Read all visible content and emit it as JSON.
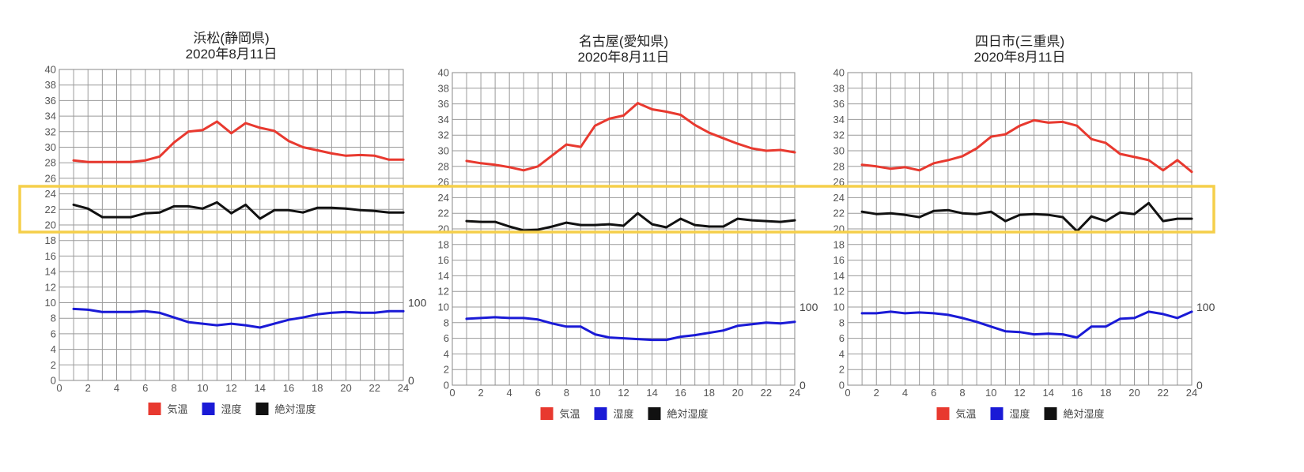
{
  "chart_data": [
    {
      "type": "line",
      "title": "浜松(静岡県)",
      "subtitle": "2020年8月11日",
      "x": [
        1,
        2,
        3,
        4,
        5,
        6,
        7,
        8,
        9,
        10,
        11,
        12,
        13,
        14,
        15,
        16,
        17,
        18,
        19,
        20,
        21,
        22,
        23,
        24
      ],
      "xticks": [
        0,
        2,
        4,
        6,
        8,
        10,
        12,
        14,
        16,
        18,
        20,
        22,
        24
      ],
      "xlim": [
        0,
        24
      ],
      "ylim": [
        0,
        40
      ],
      "yticks": [
        0,
        2,
        4,
        6,
        8,
        10,
        12,
        14,
        16,
        18,
        20,
        22,
        24,
        26,
        28,
        30,
        32,
        34,
        36,
        38,
        40
      ],
      "y2_labels": [
        {
          "label": "100",
          "y": 10
        },
        {
          "label": "0",
          "y": 0
        }
      ],
      "grid": true,
      "legend_position": "bottom",
      "series": [
        {
          "name": "気温",
          "color": "#e8392f",
          "values": [
            28.3,
            28.1,
            28.1,
            28.1,
            28.1,
            28.3,
            28.8,
            30.6,
            32.0,
            32.2,
            33.3,
            31.8,
            33.1,
            32.5,
            32.1,
            30.8,
            30.0,
            29.6,
            29.2,
            28.9,
            29.0,
            28.9,
            28.4,
            28.4
          ]
        },
        {
          "name": "湿度",
          "color": "#1a1ad6",
          "values": [
            9.2,
            9.1,
            8.8,
            8.8,
            8.8,
            8.9,
            8.7,
            8.1,
            7.5,
            7.3,
            7.1,
            7.3,
            7.1,
            6.8,
            7.3,
            7.8,
            8.1,
            8.5,
            8.7,
            8.8,
            8.7,
            8.7,
            8.9,
            8.9
          ]
        },
        {
          "name": "絶対湿度",
          "color": "#111111",
          "values": [
            22.6,
            22.1,
            21.0,
            21.0,
            21.0,
            21.5,
            21.6,
            22.4,
            22.4,
            22.1,
            22.9,
            21.5,
            22.6,
            20.8,
            21.9,
            21.9,
            21.6,
            22.2,
            22.2,
            22.1,
            21.9,
            21.8,
            21.6,
            21.6
          ]
        }
      ]
    },
    {
      "type": "line",
      "title": "名古屋(愛知県)",
      "subtitle": "2020年8月11日",
      "x": [
        1,
        2,
        3,
        4,
        5,
        6,
        7,
        8,
        9,
        10,
        11,
        12,
        13,
        14,
        15,
        16,
        17,
        18,
        19,
        20,
        21,
        22,
        23,
        24
      ],
      "xticks": [
        0,
        2,
        4,
        6,
        8,
        10,
        12,
        14,
        16,
        18,
        20,
        22,
        24
      ],
      "xlim": [
        0,
        24
      ],
      "ylim": [
        0,
        40
      ],
      "yticks": [
        0,
        2,
        4,
        6,
        8,
        10,
        12,
        14,
        16,
        18,
        20,
        22,
        24,
        26,
        28,
        30,
        32,
        34,
        36,
        38,
        40
      ],
      "y2_labels": [
        {
          "label": "100",
          "y": 10
        },
        {
          "label": "0",
          "y": 0
        }
      ],
      "grid": true,
      "legend_position": "bottom",
      "series": [
        {
          "name": "気温",
          "color": "#e8392f",
          "values": [
            28.7,
            28.4,
            28.2,
            27.9,
            27.5,
            28.0,
            29.4,
            30.8,
            30.5,
            33.2,
            34.1,
            34.5,
            36.1,
            35.3,
            35.0,
            34.6,
            33.3,
            32.3,
            31.6,
            30.9,
            30.3,
            30.0,
            30.1,
            29.8
          ]
        },
        {
          "name": "湿度",
          "color": "#1a1ad6",
          "values": [
            8.5,
            8.6,
            8.7,
            8.6,
            8.6,
            8.4,
            7.9,
            7.5,
            7.5,
            6.5,
            6.1,
            6.0,
            5.9,
            5.8,
            5.8,
            6.2,
            6.4,
            6.7,
            7.0,
            7.6,
            7.8,
            8.0,
            7.9,
            8.1
          ]
        },
        {
          "name": "絶対湿度",
          "color": "#111111",
          "values": [
            21.0,
            20.9,
            20.9,
            20.3,
            19.8,
            19.9,
            20.3,
            20.8,
            20.5,
            20.5,
            20.6,
            20.4,
            22.0,
            20.6,
            20.2,
            21.3,
            20.5,
            20.3,
            20.3,
            21.3,
            21.1,
            21.0,
            20.9,
            21.1
          ]
        }
      ]
    },
    {
      "type": "line",
      "title": "四日市(三重県)",
      "subtitle": "2020年8月11日",
      "x": [
        1,
        2,
        3,
        4,
        5,
        6,
        7,
        8,
        9,
        10,
        11,
        12,
        13,
        14,
        15,
        16,
        17,
        18,
        19,
        20,
        21,
        22,
        23,
        24
      ],
      "xticks": [
        0,
        2,
        4,
        6,
        8,
        10,
        12,
        14,
        16,
        18,
        20,
        22,
        24
      ],
      "xlim": [
        0,
        24
      ],
      "ylim": [
        0,
        40
      ],
      "yticks": [
        0,
        2,
        4,
        6,
        8,
        10,
        12,
        14,
        16,
        18,
        20,
        22,
        24,
        26,
        28,
        30,
        32,
        34,
        36,
        38,
        40
      ],
      "y2_labels": [
        {
          "label": "100",
          "y": 10
        },
        {
          "label": "0",
          "y": 0
        }
      ],
      "grid": true,
      "legend_position": "bottom",
      "series": [
        {
          "name": "気温",
          "color": "#e8392f",
          "values": [
            28.2,
            28.0,
            27.7,
            27.9,
            27.5,
            28.4,
            28.8,
            29.3,
            30.3,
            31.8,
            32.1,
            33.2,
            33.9,
            33.6,
            33.7,
            33.2,
            31.5,
            31.0,
            29.6,
            29.2,
            28.8,
            27.5,
            28.8,
            27.3
          ]
        },
        {
          "name": "湿度",
          "color": "#1a1ad6",
          "values": [
            9.2,
            9.2,
            9.4,
            9.2,
            9.3,
            9.2,
            9.0,
            8.6,
            8.1,
            7.5,
            6.9,
            6.8,
            6.5,
            6.6,
            6.5,
            6.1,
            7.5,
            7.5,
            8.5,
            8.6,
            9.4,
            9.1,
            8.6,
            9.4
          ]
        },
        {
          "name": "絶対湿度",
          "color": "#111111",
          "values": [
            22.2,
            21.9,
            22.0,
            21.8,
            21.5,
            22.3,
            22.4,
            22.0,
            21.9,
            22.2,
            21.0,
            21.8,
            21.9,
            21.8,
            21.5,
            19.7,
            21.6,
            21.0,
            22.1,
            21.9,
            23.3,
            21.0,
            21.3,
            21.3
          ]
        }
      ]
    }
  ],
  "highlight_box": {
    "color": "#f5cf4a"
  }
}
